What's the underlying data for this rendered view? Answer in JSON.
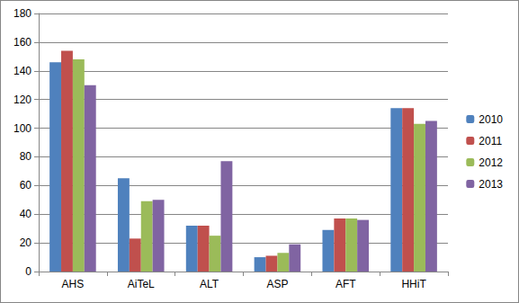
{
  "chart_data": {
    "type": "bar",
    "categories": [
      "AHS",
      "AiTeL",
      "ALT",
      "ASP",
      "AFT",
      "HHiT"
    ],
    "series": [
      {
        "name": "2010",
        "color": "#4f81bd",
        "values": [
          146,
          65,
          32,
          10,
          29,
          114
        ]
      },
      {
        "name": "2011",
        "color": "#c0504d",
        "values": [
          154,
          23,
          32,
          11,
          37,
          114
        ]
      },
      {
        "name": "2012",
        "color": "#9bbb59",
        "values": [
          148,
          49,
          25,
          13,
          37,
          103
        ]
      },
      {
        "name": "2013",
        "color": "#8064a2",
        "values": [
          130,
          50,
          77,
          19,
          36,
          105
        ]
      }
    ],
    "ylim": [
      0,
      180
    ],
    "yticks": [
      0,
      20,
      40,
      60,
      80,
      100,
      120,
      140,
      160,
      180
    ],
    "grid": true,
    "legend": "right"
  }
}
